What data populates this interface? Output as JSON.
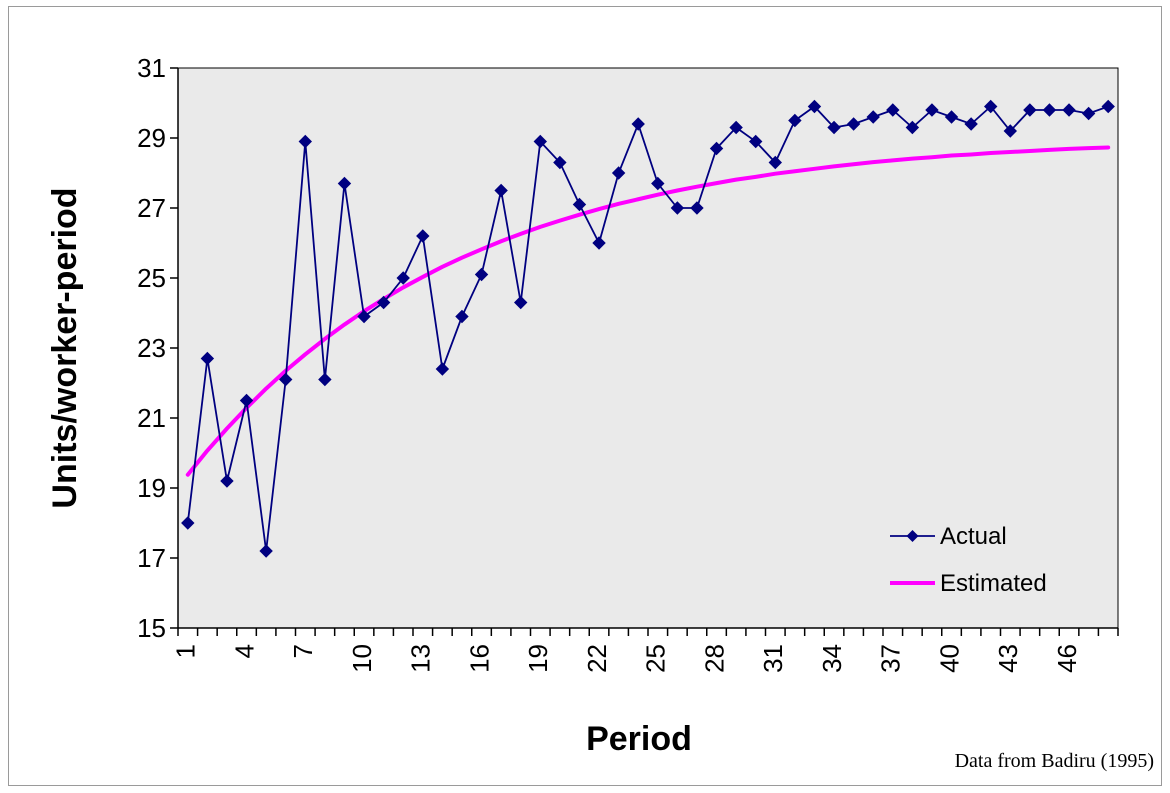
{
  "chart_data": {
    "type": "line",
    "xlabel": "Period",
    "ylabel": "Units/worker-period",
    "ylim": [
      15,
      31
    ],
    "yticks": [
      15,
      17,
      19,
      21,
      23,
      25,
      27,
      29,
      31
    ],
    "xlim": [
      1,
      48
    ],
    "xtick_labels": [
      "1",
      "4",
      "7",
      "10",
      "13",
      "16",
      "19",
      "22",
      "25",
      "28",
      "31",
      "34",
      "37",
      "40",
      "43",
      "46"
    ],
    "grid": false,
    "legend_position": "bottom-right",
    "plot_background": "#eaeaea",
    "x": [
      1,
      2,
      3,
      4,
      5,
      6,
      7,
      8,
      9,
      10,
      11,
      12,
      13,
      14,
      15,
      16,
      17,
      18,
      19,
      20,
      21,
      22,
      23,
      24,
      25,
      26,
      27,
      28,
      29,
      30,
      31,
      32,
      33,
      34,
      35,
      36,
      37,
      38,
      39,
      40,
      41,
      42,
      43,
      44,
      45,
      46,
      47,
      48
    ],
    "series": [
      {
        "name": "Actual",
        "color": "#000080",
        "marker": "diamond",
        "values": [
          18.0,
          22.7,
          19.2,
          21.5,
          17.2,
          22.1,
          28.9,
          22.1,
          27.7,
          23.9,
          24.3,
          25.0,
          26.2,
          22.4,
          23.9,
          25.1,
          27.5,
          24.3,
          28.9,
          28.3,
          27.1,
          26.0,
          28.0,
          29.4,
          27.7,
          27.0,
          27.0,
          28.7,
          29.3,
          28.9,
          28.3,
          29.5,
          29.9,
          29.3,
          29.4,
          29.6,
          29.8,
          29.3,
          29.8,
          29.6,
          29.4,
          29.9,
          29.2,
          29.8,
          29.8,
          29.8,
          29.7,
          29.9
        ]
      },
      {
        "name": "Estimated",
        "color": "#ff00ff",
        "marker": "none",
        "values": [
          19.38,
          20.07,
          20.7,
          21.29,
          21.84,
          22.35,
          22.82,
          23.26,
          23.67,
          24.05,
          24.4,
          24.73,
          25.03,
          25.32,
          25.58,
          25.82,
          26.05,
          26.26,
          26.46,
          26.64,
          26.81,
          26.97,
          27.12,
          27.25,
          27.38,
          27.5,
          27.61,
          27.71,
          27.81,
          27.89,
          27.98,
          28.05,
          28.12,
          28.19,
          28.25,
          28.31,
          28.36,
          28.41,
          28.45,
          28.5,
          28.53,
          28.57,
          28.6,
          28.63,
          28.66,
          28.69,
          28.71,
          28.73
        ]
      }
    ],
    "source_note": "Data from Badiru (1995)"
  }
}
